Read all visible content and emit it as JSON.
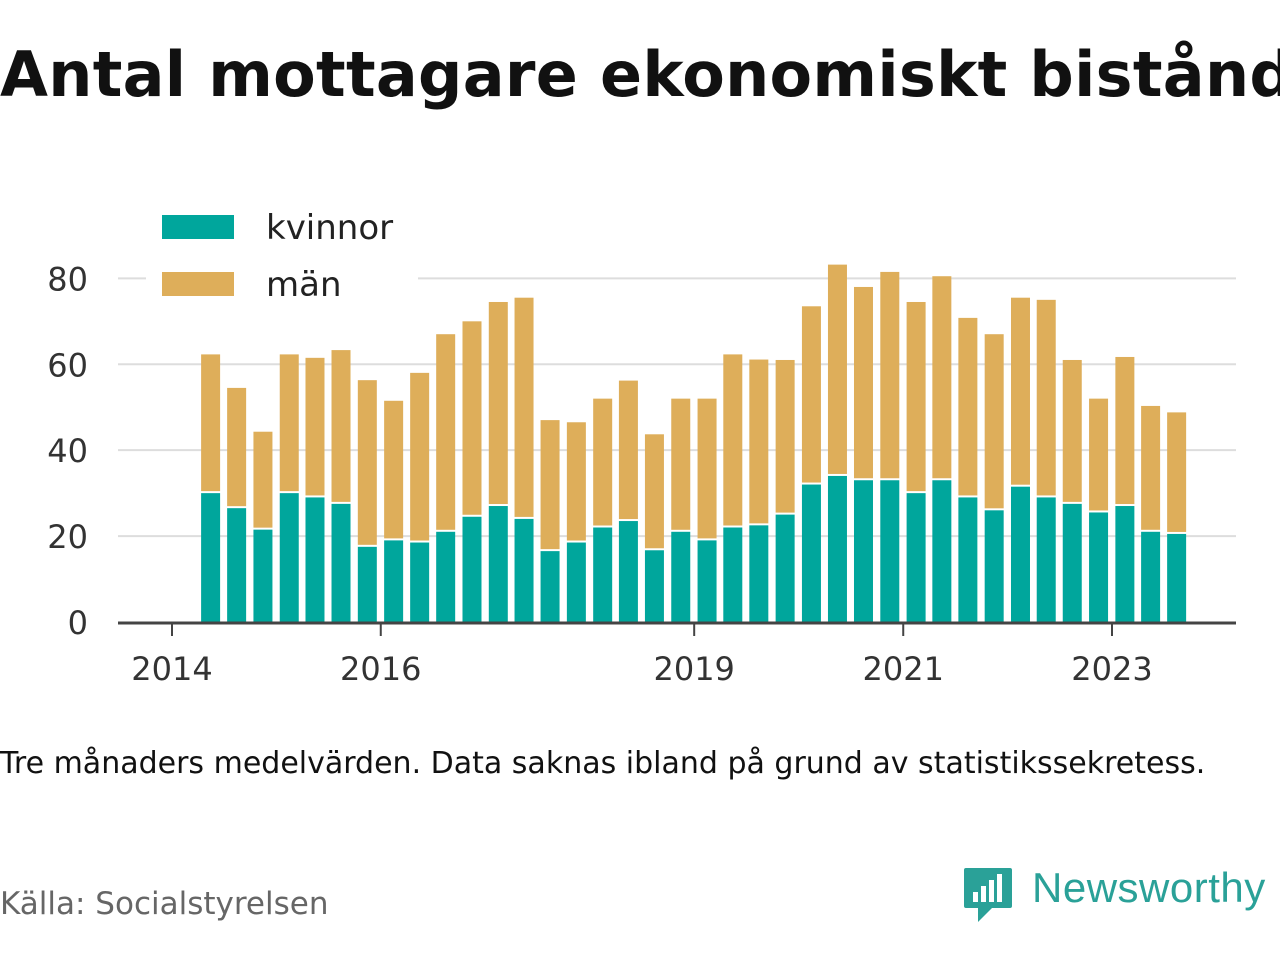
{
  "title": "Antal mottagare ekonomiskt bistånd",
  "note": "Tre månaders medelvärden. Data saknas ibland på grund av statistikssekretess.",
  "source": "Källa: Socialstyrelsen",
  "brand": {
    "name": "Newsworthy",
    "logo_icon": "chart-speech-bubble-icon",
    "color": "#2aa198"
  },
  "colors": {
    "kvinnor": "#00a69c",
    "man": "#deae5a",
    "grid": "#dddddd",
    "axis": "#444444",
    "text": "#333333"
  },
  "chart_data": {
    "type": "bar",
    "stacked": true,
    "x_ticks": [
      "2014",
      "2016",
      "2019",
      "2021",
      "2023"
    ],
    "y_ticks": [
      0,
      20,
      40,
      60,
      80
    ],
    "ylim": [
      0,
      88
    ],
    "grid": "horizontal",
    "legend_position": "top-left",
    "categories": [
      "2014-04",
      "2014-07",
      "2014-10",
      "2015-01",
      "2015-04",
      "2015-07",
      "2015-10",
      "2016-01",
      "2016-04",
      "2016-07",
      "2016-10",
      "2017-01",
      "2017-04",
      "2017-07",
      "2017-10",
      "2018-01",
      "2018-04",
      "2018-07",
      "2018-10",
      "2019-01",
      "2019-04",
      "2019-07",
      "2019-10",
      "2020-01",
      "2020-04",
      "2020-07",
      "2020-10",
      "2021-01",
      "2021-04",
      "2021-07",
      "2021-10",
      "2022-01",
      "2022-04",
      "2022-07",
      "2022-10",
      "2023-01",
      "2023-04",
      "2023-07"
    ],
    "series": [
      {
        "name": "kvinnor",
        "values": [
          30,
          26.5,
          21.5,
          30,
          29,
          27.5,
          17.5,
          19,
          18.5,
          21,
          24.5,
          27,
          24,
          16.5,
          18.5,
          22,
          23.5,
          16.7,
          21,
          19,
          22,
          22.5,
          25,
          32,
          34,
          33,
          33,
          30,
          33,
          29,
          26,
          31.5,
          29,
          27.5,
          25.5,
          27,
          21,
          20.5
        ]
      },
      {
        "name": "män",
        "values": [
          32.3,
          28,
          22.8,
          32.3,
          32.5,
          35.8,
          38.8,
          32.5,
          39.5,
          46,
          45.5,
          47.5,
          51.5,
          30.5,
          28,
          30,
          32.7,
          27,
          31,
          33,
          40.3,
          38.6,
          36,
          41.5,
          49.2,
          45,
          48.5,
          44.5,
          47.5,
          41.8,
          41,
          44,
          46,
          33.5,
          26.5,
          34.7,
          29.3,
          28.3
        ]
      }
    ]
  }
}
